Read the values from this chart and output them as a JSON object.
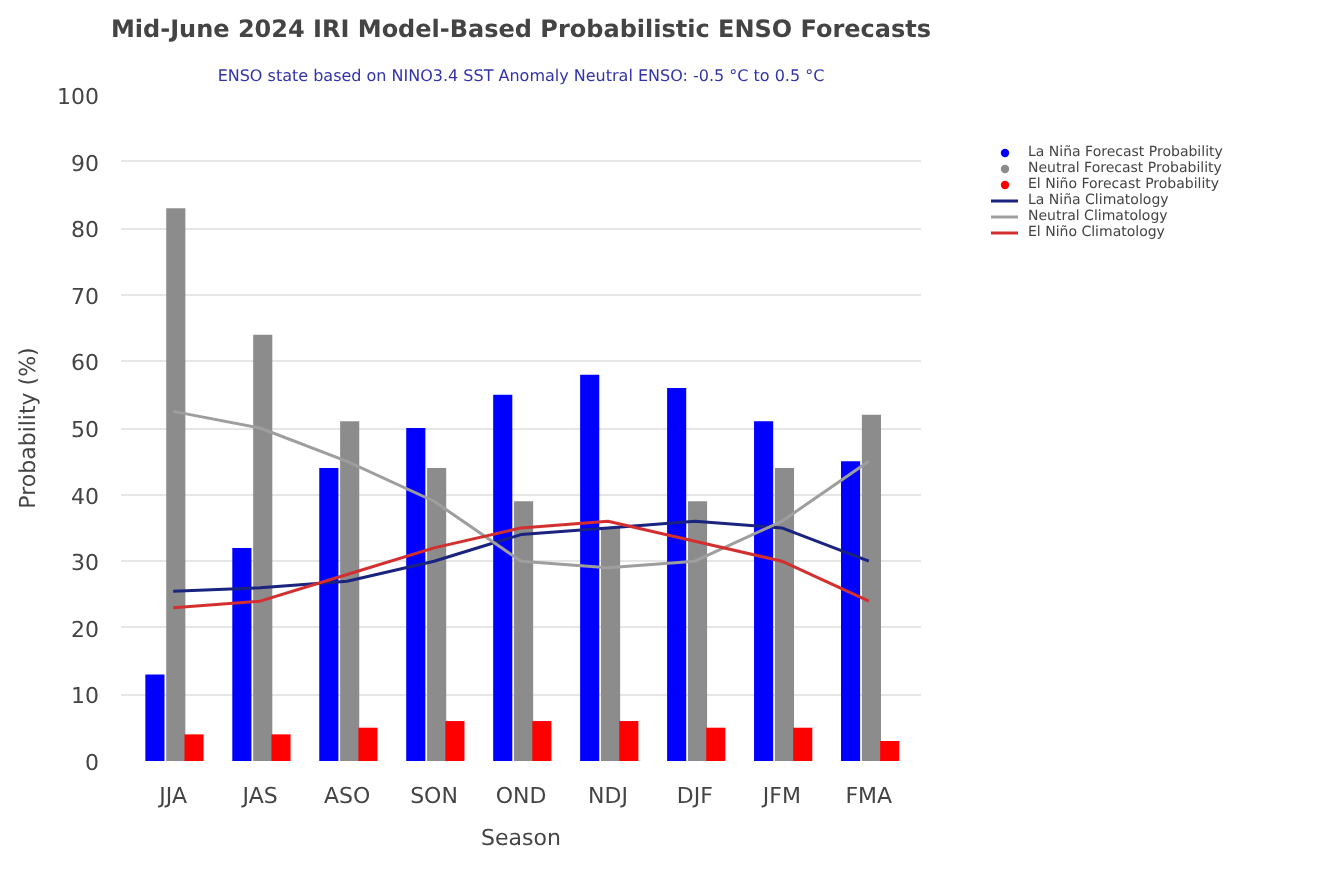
{
  "chart_data": {
    "type": "bar",
    "title": "Mid-June 2024 IRI Model-Based Probabilistic ENSO Forecasts",
    "subtitle": "ENSO state based on NINO3.4 SST Anomaly Neutral ENSO: -0.5 °C to 0.5 °C",
    "xlabel": "Season",
    "ylabel": "Probability (%)",
    "categories": [
      "JJA",
      "JAS",
      "ASO",
      "SON",
      "OND",
      "NDJ",
      "DJF",
      "JFM",
      "FMA"
    ],
    "series": [
      {
        "name": "La Niña Forecast Probability",
        "color": "#0000ff",
        "values": [
          13,
          32,
          44,
          50,
          55,
          58,
          56,
          51,
          45
        ]
      },
      {
        "name": "Neutral Forecast Probability",
        "color": "#8c8c8c",
        "values": [
          83,
          64,
          51,
          44,
          39,
          35,
          39,
          44,
          52
        ]
      },
      {
        "name": "El Niño Forecast Probability",
        "color": "#ff0000",
        "values": [
          4,
          4,
          5,
          6,
          6,
          6,
          5,
          5,
          3
        ]
      },
      {
        "name": "La Niña Climatology",
        "type": "line",
        "color": "#1a237e",
        "values": [
          25.5,
          26,
          27,
          30,
          34,
          35,
          36,
          35,
          30
        ]
      },
      {
        "name": "Neutral Climatology",
        "type": "line",
        "color": "#9e9e9e",
        "values": [
          52.5,
          50,
          45,
          39,
          30,
          29,
          30,
          36,
          45
        ]
      },
      {
        "name": "El Niño Climatology",
        "type": "line",
        "color": "#d32f2f",
        "values": [
          23,
          24,
          28,
          32,
          35,
          36,
          33,
          30,
          24
        ]
      }
    ],
    "ylim": [
      0,
      100
    ],
    "yticks": [
      0,
      10,
      20,
      30,
      40,
      50,
      60,
      70,
      80,
      90,
      100
    ],
    "grid": "y",
    "legend": "right"
  }
}
